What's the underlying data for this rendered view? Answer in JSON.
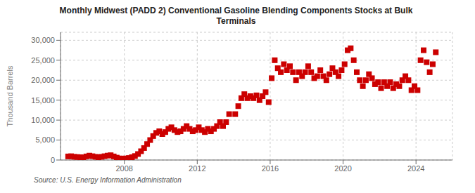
{
  "chart_data": {
    "type": "scatter",
    "title": "Monthly Midwest (PADD 2) Conventional Gasoline Blending Components Stocks at Bulk\nTerminals",
    "ylabel": "Thousand Barrels",
    "annotations": [
      "Source: U.S. Energy Information Administration"
    ],
    "color": "#cc0000",
    "marker": "square",
    "grid": true,
    "xlim": [
      2004.5,
      2026.0
    ],
    "xticks": [
      2008,
      2012,
      2016,
      2020,
      2024
    ],
    "ylim": [
      0,
      32000
    ],
    "yticks": [
      0,
      {
        "value": 5000,
        "label": "5,000"
      },
      {
        "value": 10000,
        "label": "10,000"
      },
      {
        "value": 15000,
        "label": "15,000"
      },
      {
        "value": 20000,
        "label": "20,000"
      },
      {
        "value": 25000,
        "label": "25,000"
      },
      {
        "value": 30000,
        "label": "30,000"
      }
    ],
    "x": [
      2004.917,
      2005.083,
      2005.25,
      2005.417,
      2005.583,
      2005.75,
      2005.917,
      2006.083,
      2006.25,
      2006.417,
      2006.583,
      2006.75,
      2006.917,
      2007.083,
      2007.25,
      2007.417,
      2007.583,
      2007.75,
      2007.917,
      2008.083,
      2008.25,
      2008.417,
      2008.583,
      2008.75,
      2008.917,
      2009.083,
      2009.25,
      2009.417,
      2009.583,
      2009.75,
      2009.917,
      2010.083,
      2010.25,
      2010.417,
      2010.583,
      2010.75,
      2010.917,
      2011.083,
      2011.25,
      2011.417,
      2011.583,
      2011.75,
      2011.917,
      2012.083,
      2012.25,
      2012.417,
      2012.583,
      2012.75,
      2012.917,
      2013.083,
      2013.25,
      2013.417,
      2013.583,
      2013.75,
      2014.083,
      2014.25,
      2014.417,
      2014.583,
      2014.75,
      2014.917,
      2015.083,
      2015.25,
      2015.417,
      2015.583,
      2015.75,
      2015.917,
      2016.083,
      2016.25,
      2016.417,
      2016.583,
      2016.75,
      2016.917,
      2017.083,
      2017.25,
      2017.417,
      2017.583,
      2017.75,
      2017.917,
      2018.083,
      2018.25,
      2018.417,
      2018.583,
      2018.75,
      2018.917,
      2019.083,
      2019.25,
      2019.417,
      2019.583,
      2019.75,
      2019.917,
      2020.083,
      2020.25,
      2020.417,
      2020.583,
      2020.75,
      2020.917,
      2021.083,
      2021.25,
      2021.417,
      2021.583,
      2021.75,
      2021.917,
      2022.083,
      2022.25,
      2022.417,
      2022.583,
      2022.75,
      2022.917,
      2023.083,
      2023.25,
      2023.417,
      2023.583,
      2023.75,
      2023.917,
      2024.083,
      2024.25,
      2024.417,
      2024.583,
      2024.75,
      2024.917,
      2025.083
    ],
    "values": [
      900,
      950,
      800,
      750,
      700,
      650,
      900,
      1100,
      950,
      800,
      700,
      800,
      950,
      1100,
      1200,
      900,
      600,
      400,
      350,
      400,
      500,
      700,
      1000,
      1500,
      2200,
      3000,
      4000,
      5000,
      6000,
      6800,
      7200,
      6500,
      7000,
      7800,
      8200,
      7500,
      7000,
      7200,
      7800,
      8500,
      7800,
      7200,
      7500,
      8200,
      7500,
      7000,
      7800,
      7200,
      7800,
      8500,
      9500,
      8500,
      9500,
      11500,
      11500,
      13500,
      15500,
      16500,
      15500,
      16000,
      15500,
      16200,
      15000,
      16000,
      17000,
      14500,
      20500,
      25000,
      23000,
      22000,
      24000,
      22500,
      23500,
      22000,
      20000,
      22000,
      21000,
      22000,
      23500,
      22000,
      20500,
      21000,
      22500,
      21000,
      20000,
      21500,
      23000,
      22000,
      21000,
      22500,
      24000,
      27500,
      28000,
      25000,
      22000,
      20000,
      18500,
      20000,
      21500,
      20500,
      19000,
      19500,
      18000,
      19500,
      18500,
      19500,
      18000,
      19000,
      18500,
      20000,
      21000,
      20000,
      17500,
      18500,
      17500,
      25000,
      27500,
      24500,
      22000,
      24000,
      27000
    ]
  }
}
